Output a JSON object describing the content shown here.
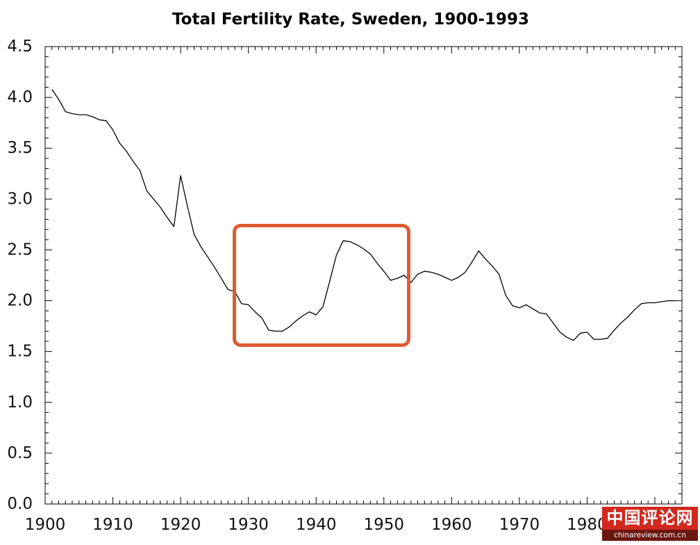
{
  "chart_data": {
    "type": "line",
    "title": "Total Fertility Rate, Sweden, 1900-1993",
    "xlabel": "",
    "ylabel": "",
    "xlim": [
      1900,
      1994
    ],
    "ylim": [
      0,
      4.5
    ],
    "x_major_step": 10,
    "x_minor_step": 1,
    "y_major_step": 0.5,
    "y_minor_step": 0.1,
    "x_tick_labels": [
      "1900",
      "1910",
      "1920",
      "1930",
      "1940",
      "1950",
      "1960",
      "1970",
      "1980"
    ],
    "y_tick_labels": [
      "0.0",
      "0.5",
      "1.0",
      "1.5",
      "2.0",
      "2.5",
      "3.0",
      "3.5",
      "4.0",
      "4.5"
    ],
    "grid": false,
    "legend": "none",
    "highlight_color": "#E05A30",
    "series": [
      {
        "color": "#000000",
        "x": [
          1901,
          1902,
          1903,
          1904,
          1905,
          1906,
          1907,
          1908,
          1909,
          1910,
          1911,
          1912,
          1913,
          1914,
          1915,
          1916,
          1917,
          1918,
          1919,
          1920,
          1921,
          1922,
          1923,
          1924,
          1925,
          1926,
          1927,
          1928,
          1929,
          1930,
          1931,
          1932,
          1933,
          1934,
          1935,
          1936,
          1937,
          1938,
          1939,
          1940,
          1941,
          1942,
          1943,
          1944,
          1945,
          1946,
          1947,
          1948,
          1949,
          1950,
          1951,
          1952,
          1953,
          1954,
          1955,
          1956,
          1957,
          1958,
          1959,
          1960,
          1961,
          1962,
          1963,
          1964,
          1965,
          1966,
          1967,
          1968,
          1969,
          1970,
          1971,
          1972,
          1973,
          1974,
          1975,
          1976,
          1977,
          1978,
          1979,
          1980,
          1981,
          1982,
          1983,
          1984,
          1985,
          1986,
          1987,
          1988,
          1989,
          1990,
          1991,
          1992,
          1993
        ],
        "y": [
          4.08,
          3.98,
          3.86,
          3.84,
          3.83,
          3.83,
          3.81,
          3.78,
          3.77,
          3.68,
          3.55,
          3.47,
          3.37,
          3.28,
          3.08,
          3.0,
          2.92,
          2.82,
          2.73,
          3.23,
          2.93,
          2.65,
          2.53,
          2.43,
          2.33,
          2.22,
          2.11,
          2.09,
          1.97,
          1.96,
          1.89,
          1.83,
          1.71,
          1.7,
          1.7,
          1.74,
          1.8,
          1.85,
          1.89,
          1.86,
          1.94,
          2.19,
          2.45,
          2.59,
          2.58,
          2.55,
          2.51,
          2.46,
          2.37,
          2.29,
          2.2,
          2.22,
          2.25,
          2.18,
          2.26,
          2.29,
          2.28,
          2.26,
          2.23,
          2.2,
          2.23,
          2.28,
          2.38,
          2.49,
          2.41,
          2.34,
          2.26,
          2.05,
          1.95,
          1.93,
          1.96,
          1.92,
          1.88,
          1.87,
          1.78,
          1.69,
          1.64,
          1.61,
          1.68,
          1.69,
          1.62,
          1.62,
          1.63,
          1.71,
          1.78,
          1.84,
          1.91,
          1.97,
          1.98,
          1.98,
          1.99,
          2.0,
          2.0
        ]
      }
    ]
  },
  "watermark": {
    "name": "中国评论网",
    "url": "chinareview.com.cn",
    "color": "#D2281E",
    "strip_color": "#6A1710"
  }
}
